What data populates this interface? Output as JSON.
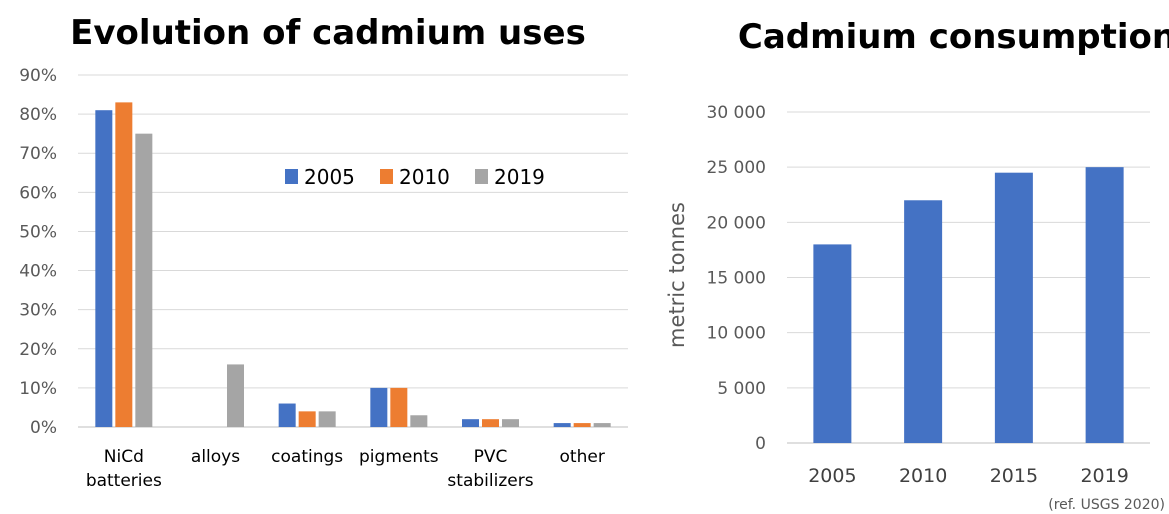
{
  "chart_data": [
    {
      "type": "bar",
      "title": "Evolution of cadmium uses",
      "categories": [
        "NiCd batteries",
        "alloys",
        "coatings",
        "pigments",
        "PVC stabilizers",
        "other"
      ],
      "category_lines": [
        [
          "NiCd",
          "batteries"
        ],
        [
          "alloys"
        ],
        [
          "coatings"
        ],
        [
          "pigments"
        ],
        [
          "PVC",
          "stabilizers"
        ],
        [
          "other"
        ]
      ],
      "series": [
        {
          "name": "2005",
          "color": "#4472c4",
          "values": [
            81,
            0,
            6,
            10,
            2,
            1
          ]
        },
        {
          "name": "2010",
          "color": "#ed7d31",
          "values": [
            83,
            0,
            4,
            10,
            2,
            1
          ]
        },
        {
          "name": "2019",
          "color": "#a5a5a5",
          "values": [
            75,
            16,
            4,
            3,
            2,
            1
          ]
        }
      ],
      "ylim": [
        0,
        90
      ],
      "yticks": [
        0,
        10,
        20,
        30,
        40,
        50,
        60,
        70,
        80,
        90
      ],
      "ytick_labels": [
        "0%",
        "10%",
        "20%",
        "30%",
        "40%",
        "50%",
        "60%",
        "70%",
        "80%",
        "90%"
      ],
      "grid": true,
      "legend": "upper-right-inside"
    },
    {
      "type": "bar",
      "title": "Cadmium consumption",
      "categories": [
        "2005",
        "2010",
        "2015",
        "2019"
      ],
      "values": [
        18000,
        22000,
        24500,
        25000
      ],
      "color": "#4472c4",
      "ylabel": "metric tonnes",
      "ylim": [
        0,
        30000
      ],
      "yticks": [
        0,
        5000,
        10000,
        15000,
        20000,
        25000,
        30000
      ],
      "ytick_labels": [
        "0",
        "5 000",
        "10 000",
        "15 000",
        "20 000",
        "25 000",
        "30 000"
      ],
      "grid": true
    }
  ],
  "source_note": "(ref. USGS 2020)"
}
